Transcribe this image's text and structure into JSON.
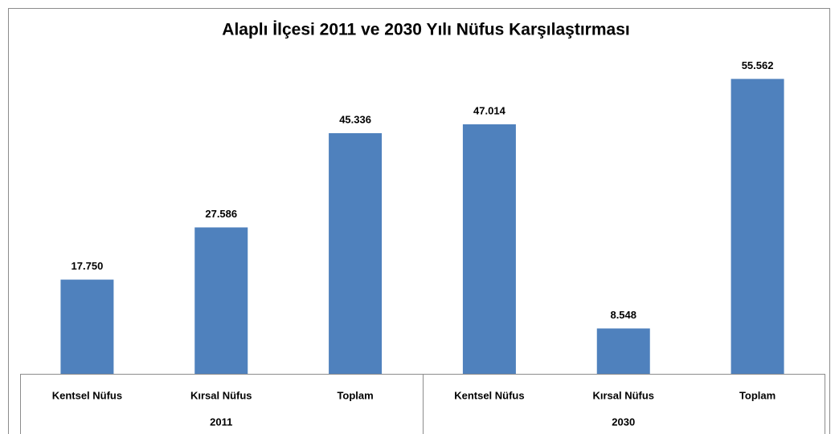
{
  "chart_data": {
    "type": "bar",
    "title": "Alaplı İlçesi 2011 ve 2030 Yılı Nüfus Karşılaştırması",
    "categories": [
      "Kentsel Nüfus",
      "Kırsal Nüfus",
      "Toplam",
      "Kentsel Nüfus",
      "Kırsal Nüfus",
      "Toplam"
    ],
    "groups": [
      "2011",
      "2030"
    ],
    "values": [
      17750,
      27586,
      45336,
      47014,
      8548,
      55562
    ],
    "value_labels": [
      "17.750",
      "27.586",
      "45.336",
      "47.014",
      "8.548",
      "55.562"
    ],
    "color": "#4f81bd",
    "ylim": [
      0,
      60000
    ]
  }
}
